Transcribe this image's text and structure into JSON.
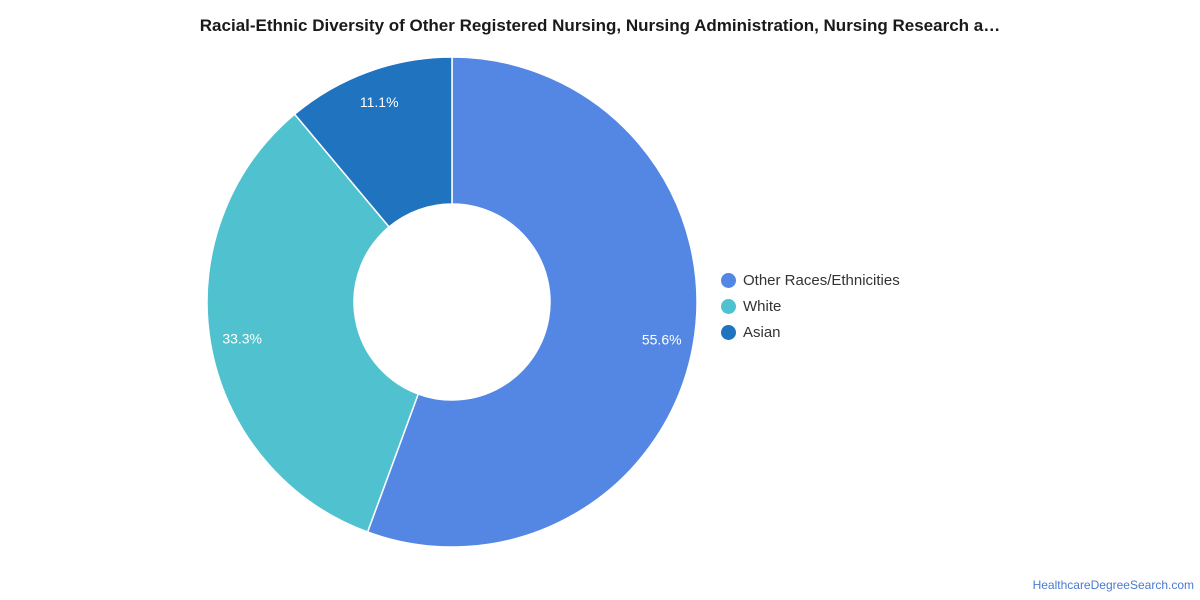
{
  "chart_data": {
    "type": "pie",
    "title": "Racial-Ethnic Diversity of Other Registered Nursing, Nursing Administration, Nursing Research a…",
    "categories": [
      "Other Races/Ethnicities",
      "White",
      "Asian"
    ],
    "values": [
      55.6,
      33.3,
      11.1
    ],
    "value_labels": [
      "55.6%",
      "33.3%",
      "11.1%"
    ],
    "colors": [
      "#5487e3",
      "#50c1ce",
      "#1f73bf"
    ],
    "donut": true,
    "legend_position": "right"
  },
  "footer": {
    "source": "HealthcareDegreeSearch.com"
  }
}
